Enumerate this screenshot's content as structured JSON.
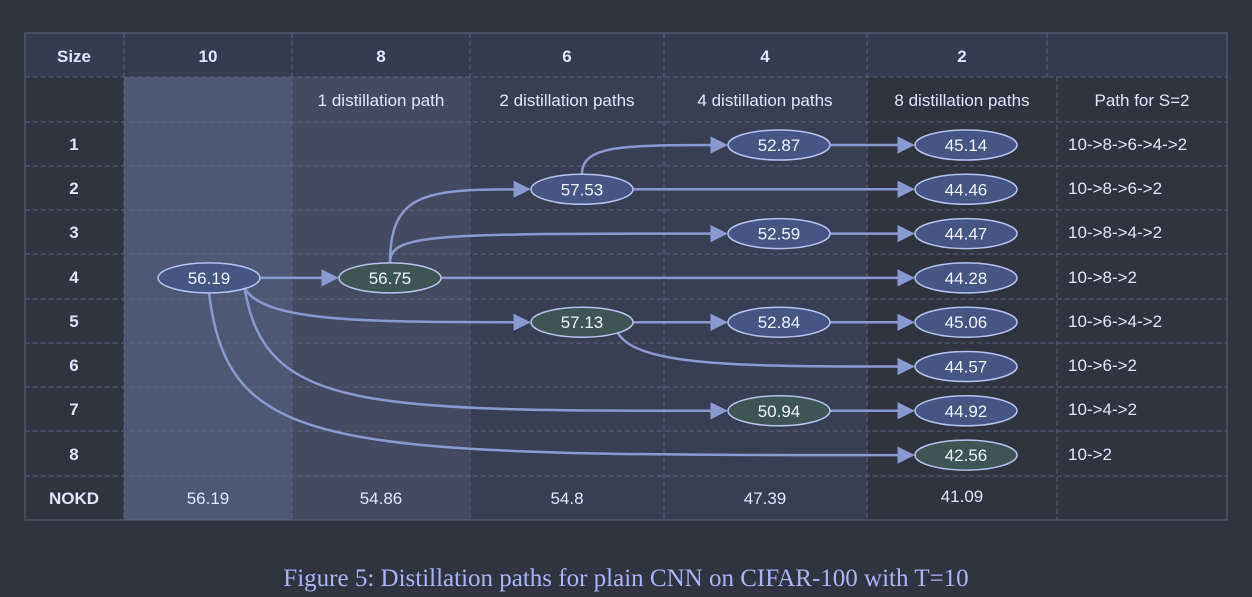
{
  "headers": {
    "corner": "Size",
    "columns": [
      "10",
      "8",
      "6",
      "4",
      "2",
      ""
    ],
    "subheaders": [
      "",
      "1 distillation path",
      "2 distillation paths",
      "4 distillation paths",
      "8 distillation paths",
      "Path for S=2"
    ]
  },
  "rows": [
    {
      "label": "1",
      "path": "10->8->6->4->2"
    },
    {
      "label": "2",
      "path": "10->8->6->2"
    },
    {
      "label": "3",
      "path": "10->8->4->2"
    },
    {
      "label": "4",
      "path": "10->8->2"
    },
    {
      "label": "5",
      "path": "10->6->4->2"
    },
    {
      "label": "6",
      "path": "10->6->2"
    },
    {
      "label": "7",
      "path": "10->4->2"
    },
    {
      "label": "8",
      "path": "10->2"
    }
  ],
  "nokd": {
    "label": "NOKD",
    "values": [
      "56.19",
      "54.86",
      "54.8",
      "47.39",
      "41.09"
    ]
  },
  "nodes": [
    {
      "id": "n10",
      "col": 0,
      "row": 3,
      "value": "56.19",
      "tone": "blue"
    },
    {
      "id": "n8",
      "col": 1,
      "row": 3,
      "value": "56.75",
      "tone": "green"
    },
    {
      "id": "n6a",
      "col": 2,
      "row": 1,
      "value": "57.53",
      "tone": "blue"
    },
    {
      "id": "n6b",
      "col": 2,
      "row": 4,
      "value": "57.13",
      "tone": "green"
    },
    {
      "id": "n4a",
      "col": 3,
      "row": 0,
      "value": "52.87",
      "tone": "blue"
    },
    {
      "id": "n4b",
      "col": 3,
      "row": 2,
      "value": "52.59",
      "tone": "blue"
    },
    {
      "id": "n4c",
      "col": 3,
      "row": 4,
      "value": "52.84",
      "tone": "blue"
    },
    {
      "id": "n4d",
      "col": 3,
      "row": 6,
      "value": "50.94",
      "tone": "green"
    },
    {
      "id": "n2a",
      "col": 4,
      "row": 0,
      "value": "45.14",
      "tone": "blue"
    },
    {
      "id": "n2b",
      "col": 4,
      "row": 1,
      "value": "44.46",
      "tone": "blue"
    },
    {
      "id": "n2c",
      "col": 4,
      "row": 2,
      "value": "44.47",
      "tone": "blue"
    },
    {
      "id": "n2d",
      "col": 4,
      "row": 3,
      "value": "44.28",
      "tone": "blue"
    },
    {
      "id": "n2e",
      "col": 4,
      "row": 4,
      "value": "45.06",
      "tone": "blue"
    },
    {
      "id": "n2f",
      "col": 4,
      "row": 5,
      "value": "44.57",
      "tone": "blue"
    },
    {
      "id": "n2g",
      "col": 4,
      "row": 6,
      "value": "44.92",
      "tone": "blue"
    },
    {
      "id": "n2h",
      "col": 4,
      "row": 7,
      "value": "42.56",
      "tone": "green"
    }
  ],
  "edges": [
    [
      "n10",
      "n8"
    ],
    [
      "n10",
      "n6b"
    ],
    [
      "n10",
      "n4d"
    ],
    [
      "n10",
      "n2h"
    ],
    [
      "n8",
      "n6a"
    ],
    [
      "n8",
      "n4b"
    ],
    [
      "n8",
      "n2d"
    ],
    [
      "n6a",
      "n4a"
    ],
    [
      "n6a",
      "n2b"
    ],
    [
      "n6b",
      "n4c"
    ],
    [
      "n6b",
      "n2f"
    ],
    [
      "n4a",
      "n2a"
    ],
    [
      "n4b",
      "n2c"
    ],
    [
      "n4c",
      "n2e"
    ],
    [
      "n4d",
      "n2g"
    ]
  ],
  "colors": {
    "background": "#30343f",
    "header_band": "#353c50",
    "col10_fill": "#4e5872",
    "col8_fill": "#444b61",
    "mid_fill": "#393f52",
    "node_blue": "#465583",
    "node_green": "#3f5553",
    "node_stroke": "#b6c2ee",
    "edge": "#8a9ad0",
    "caption": "#a9b5f5"
  },
  "caption": "Figure 5: Distillation paths for plain CNN on CIFAR-100 with T=10"
}
